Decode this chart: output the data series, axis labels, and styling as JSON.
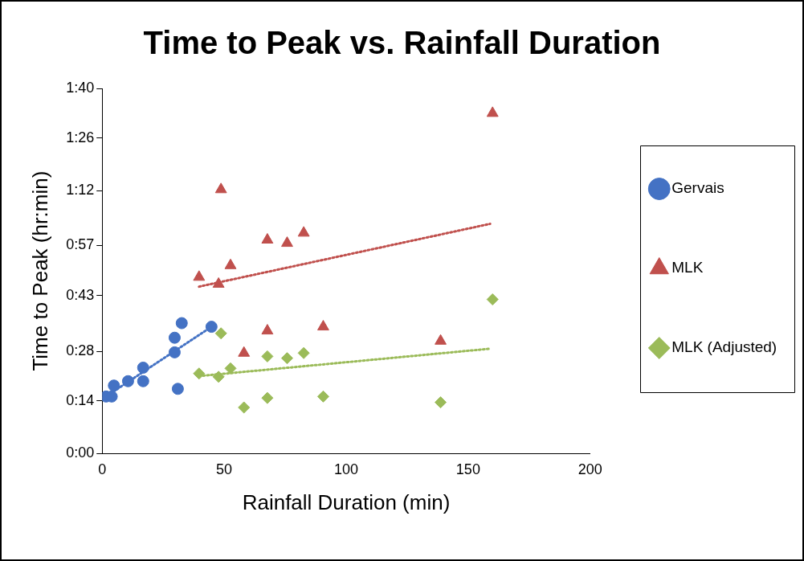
{
  "chart_data": {
    "type": "scatter",
    "title": "Time to Peak vs. Rainfall Duration",
    "xlabel": "Rainfall Duration (min)",
    "ylabel": "Time to Peak (hr:min)",
    "xlim": [
      0,
      200
    ],
    "xticks": [
      0,
      50,
      100,
      150,
      200
    ],
    "ylim": [
      0,
      100
    ],
    "yticks": [
      {
        "value": 0,
        "label": "0:00"
      },
      {
        "value": 14.4,
        "label": "0:14"
      },
      {
        "value": 28,
        "label": "0:28"
      },
      {
        "value": 43.2,
        "label": "0:43"
      },
      {
        "value": 57,
        "label": "0:57"
      },
      {
        "value": 72,
        "label": "1:12"
      },
      {
        "value": 86.4,
        "label": "1:26"
      },
      {
        "value": 100,
        "label": "1:40"
      }
    ],
    "grid": false,
    "legend": "right",
    "series": [
      {
        "name": "Gervais",
        "type": "scatter",
        "marker": "circle",
        "color": "#4472c4",
        "x": [
          1.6,
          3.9,
          4.8,
          10.6,
          16.8,
          16.8,
          29.7,
          29.7,
          31,
          32.6,
          44.8
        ],
        "values": [
          15.6,
          15.6,
          18.6,
          19.8,
          23.5,
          19.8,
          27.7,
          31.7,
          17.7,
          35.7,
          34.7
        ]
      },
      {
        "name": "MLK",
        "type": "scatter",
        "marker": "triangle",
        "color": "#c0504d",
        "x": [
          39.7,
          47.7,
          48.7,
          52.6,
          58.1,
          67.7,
          67.7,
          75.8,
          82.6,
          90.6,
          138.7,
          160
        ],
        "values": [
          48.3,
          46.4,
          72.3,
          51.5,
          27.5,
          58.5,
          33.6,
          57.6,
          60.4,
          34.7,
          30.8,
          93.2
        ]
      },
      {
        "name": "MLK (Adjusted)",
        "type": "scatter",
        "marker": "diamond",
        "color": "#9bbb59",
        "x": [
          39.7,
          47.7,
          48.7,
          52.6,
          58.1,
          67.7,
          67.7,
          75.8,
          82.6,
          90.6,
          138.7,
          160
        ],
        "values": [
          21.9,
          21.0,
          32.9,
          23.3,
          12.6,
          26.6,
          15.2,
          26.1,
          27.5,
          15.6,
          14.0,
          42.2
        ]
      },
      {
        "type": "line",
        "marker": "none",
        "line_style": "dotted",
        "color": "#4472c4",
        "x": [
          0.6,
          44.8
        ],
        "values": [
          15.2,
          34.7
        ]
      },
      {
        "type": "line",
        "marker": "none",
        "line_style": "dotted",
        "color": "#c0504d",
        "x": [
          39.7,
          159
        ],
        "values": [
          45.7,
          62.9
        ]
      },
      {
        "type": "line",
        "marker": "none",
        "line_style": "dotted",
        "color": "#9bbb59",
        "x": [
          39.7,
          159
        ],
        "values": [
          21.2,
          28.7
        ]
      }
    ]
  }
}
